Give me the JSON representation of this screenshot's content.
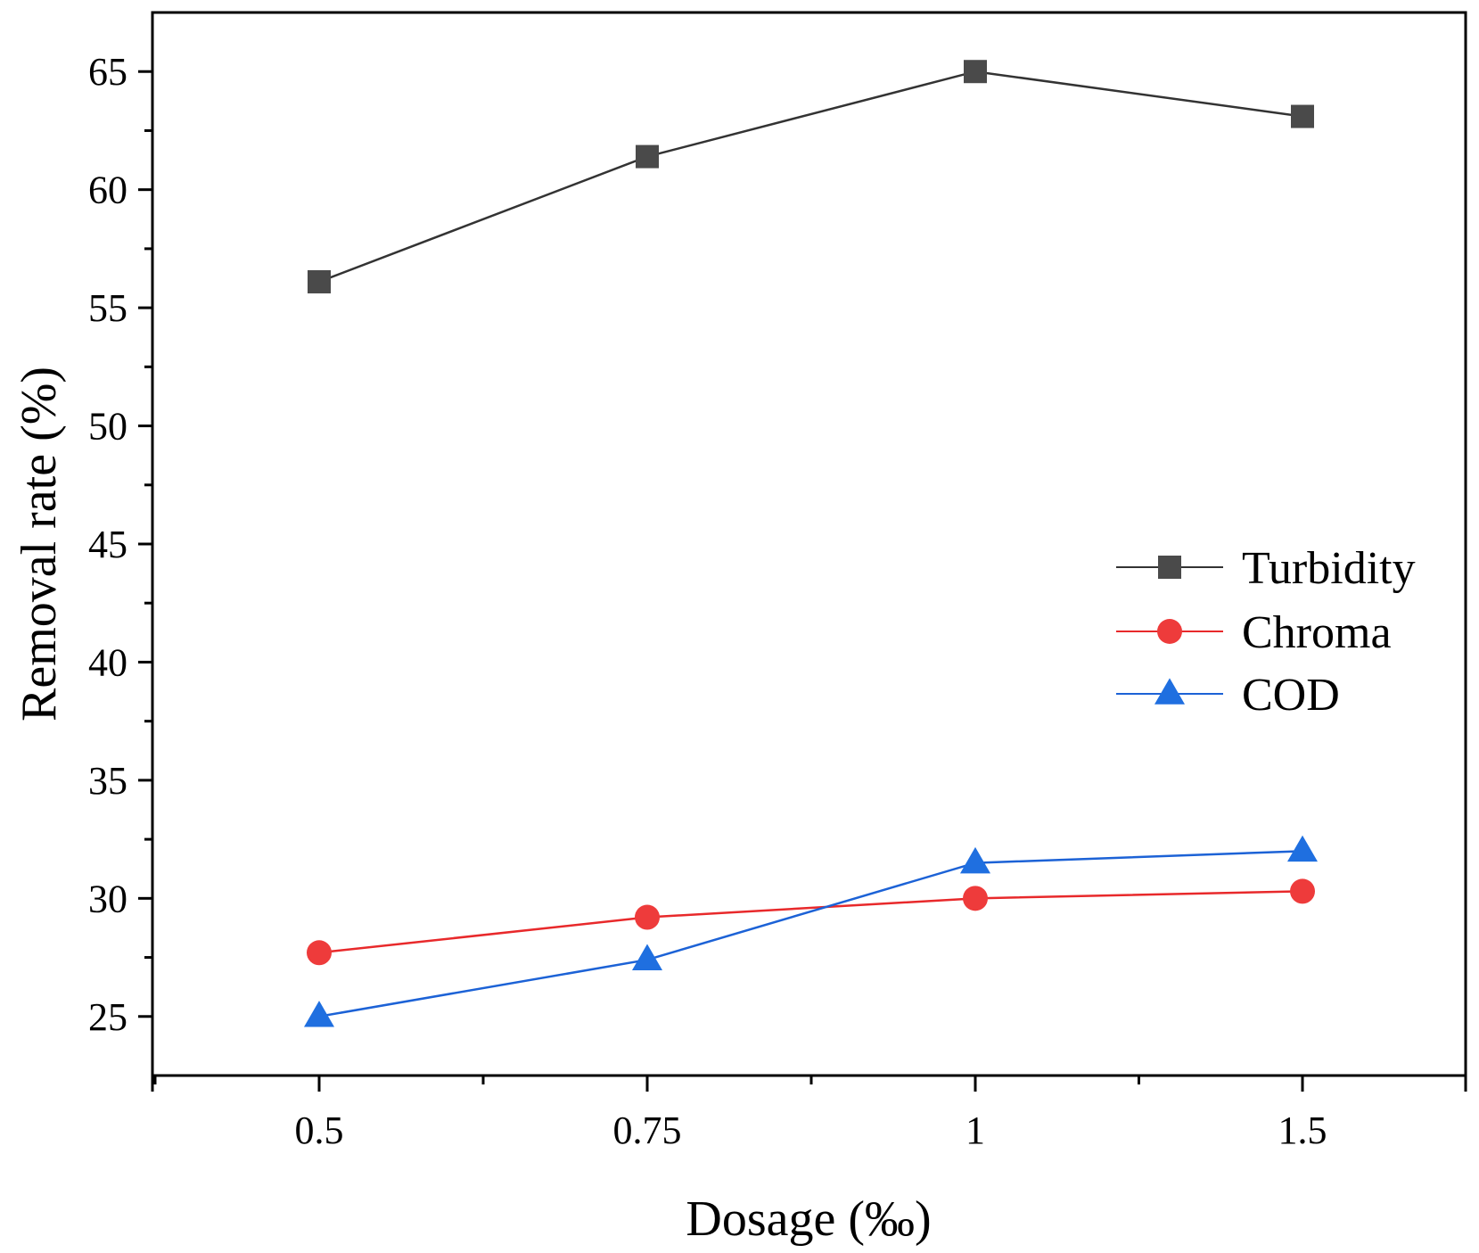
{
  "chart_data": {
    "type": "line",
    "xlabel": "Dosage (‰)",
    "ylabel": "Removal rate (%)",
    "categories": [
      "0.5",
      "0.75",
      "1",
      "1.5"
    ],
    "ylim": [
      22.5,
      67.5
    ],
    "yticks": [
      25,
      30,
      35,
      40,
      45,
      50,
      55,
      60,
      65
    ],
    "ytick_labels": [
      "25",
      "30",
      "35",
      "40",
      "45",
      "50",
      "55",
      "60",
      "65"
    ],
    "grid": false,
    "legend_position": "right",
    "series": [
      {
        "name": "Turbidity",
        "marker": "square",
        "color": "#333333",
        "marker_color": "#4a4a4a",
        "values": [
          56.1,
          61.4,
          65.0,
          63.1
        ]
      },
      {
        "name": "Chroma",
        "marker": "circle",
        "color": "#e8292b",
        "marker_color": "#ee3b3b",
        "values": [
          27.7,
          29.2,
          30.0,
          30.3
        ]
      },
      {
        "name": "COD",
        "marker": "triangle",
        "color": "#1c62d6",
        "marker_color": "#1f6fe0",
        "values": [
          25.0,
          27.4,
          31.5,
          32.0
        ]
      }
    ]
  }
}
